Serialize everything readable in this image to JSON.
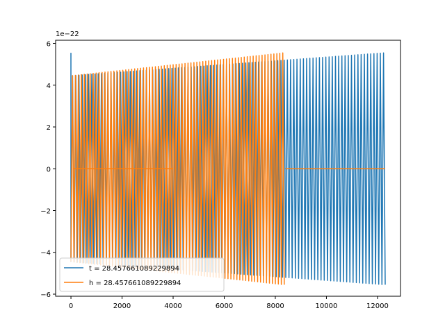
{
  "chart_data": {
    "type": "line",
    "title": "",
    "xlabel": "",
    "ylabel": "",
    "y_offset_label": "1e−22",
    "xlim": [
      -600,
      12900
    ],
    "ylim": [
      -6.1,
      6.15
    ],
    "x_ticks": [
      0,
      2000,
      4000,
      6000,
      8000,
      10000,
      12000
    ],
    "x_tick_labels": [
      "0",
      "2000",
      "4000",
      "6000",
      "8000",
      "10000",
      "12000"
    ],
    "y_ticks": [
      -6,
      -4,
      -2,
      0,
      2,
      4,
      6
    ],
    "y_tick_labels": [
      "−6",
      "−4",
      "−2",
      "0",
      "2",
      "4",
      "6"
    ],
    "grid": false,
    "legend_position": "lower-left",
    "series": [
      {
        "name": "t = 28.457661089229894",
        "color": "#1f77b4",
        "shape": "oscillation",
        "x_start": 0,
        "x_end": 12300,
        "cycles": 98,
        "amplitude_start": 4.45,
        "amplitude_end": 5.55,
        "initial_spike": 5.55
      },
      {
        "name": "h = 28.457661089229894",
        "color": "#ff7f0e",
        "shape": "oscillation-with-flat-segments",
        "x_start": 0,
        "x_end": 8350,
        "cycles": 72,
        "amplitude_start": 4.45,
        "amplitude_end": 5.55,
        "flat_segments": [
          [
            70,
            4000
          ],
          [
            8400,
            12300
          ]
        ],
        "flat_value": 0
      }
    ]
  }
}
